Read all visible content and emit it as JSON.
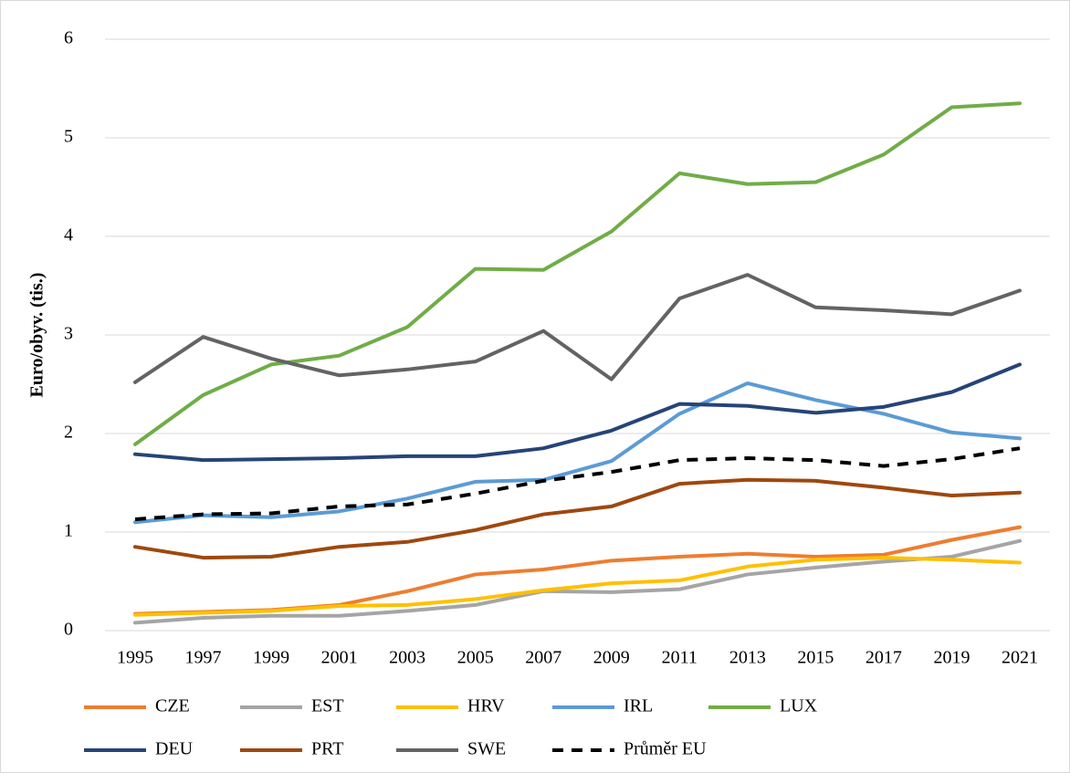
{
  "chart_data": {
    "type": "line",
    "y_label": "Euro/obyv. (tis.)",
    "categories": [
      "1995",
      "1997",
      "1999",
      "2001",
      "2003",
      "2005",
      "2007",
      "2009",
      "2011",
      "2013",
      "2015",
      "2017",
      "2019",
      "2021"
    ],
    "series": [
      {
        "name": "CZE",
        "color": "#ed7d31",
        "values": [
          0.17,
          0.19,
          0.21,
          0.26,
          0.4,
          0.57,
          0.62,
          0.71,
          0.75,
          0.78,
          0.75,
          0.77,
          0.92,
          1.05
        ]
      },
      {
        "name": "EST",
        "color": "#a5a5a5",
        "values": [
          0.08,
          0.13,
          0.15,
          0.15,
          0.2,
          0.26,
          0.4,
          0.39,
          0.42,
          0.57,
          0.64,
          0.7,
          0.75,
          0.91
        ]
      },
      {
        "name": "HRV",
        "color": "#ffc000",
        "values": [
          0.16,
          0.18,
          0.2,
          0.25,
          0.26,
          0.32,
          0.41,
          0.48,
          0.51,
          0.65,
          0.72,
          0.74,
          0.72,
          0.69
        ]
      },
      {
        "name": "IRL",
        "color": "#5b9bd5",
        "values": [
          1.1,
          1.17,
          1.15,
          1.21,
          1.34,
          1.51,
          1.53,
          1.72,
          2.2,
          2.51,
          2.34,
          2.2,
          2.01,
          1.95
        ]
      },
      {
        "name": "LUX",
        "color": "#70ad47",
        "values": [
          1.89,
          2.39,
          2.7,
          2.79,
          3.08,
          3.67,
          3.66,
          4.05,
          4.64,
          4.53,
          4.55,
          4.83,
          5.31,
          5.35
        ]
      },
      {
        "name": "DEU",
        "color": "#264478",
        "values": [
          1.79,
          1.73,
          1.74,
          1.75,
          1.77,
          1.77,
          1.85,
          2.03,
          2.3,
          2.28,
          2.21,
          2.27,
          2.42,
          2.7
        ]
      },
      {
        "name": "PRT",
        "color": "#9e480e",
        "values": [
          0.85,
          0.74,
          0.75,
          0.85,
          0.9,
          1.02,
          1.18,
          1.26,
          1.49,
          1.53,
          1.52,
          1.45,
          1.37,
          1.4
        ]
      },
      {
        "name": "SWE",
        "color": "#636363",
        "values": [
          2.52,
          2.98,
          2.76,
          2.59,
          2.65,
          2.73,
          3.04,
          2.55,
          3.37,
          3.61,
          3.28,
          3.25,
          3.21,
          3.45
        ]
      },
      {
        "name": "Průměr EU",
        "color": "#000000",
        "dashed": true,
        "values": [
          1.13,
          1.18,
          1.19,
          1.26,
          1.28,
          1.39,
          1.52,
          1.61,
          1.73,
          1.75,
          1.73,
          1.67,
          1.74,
          1.85
        ]
      }
    ],
    "ylim": [
      0,
      6
    ],
    "yticks": [
      0,
      1,
      2,
      3,
      4,
      5,
      6
    ],
    "grid": true,
    "legend": "bottom"
  }
}
